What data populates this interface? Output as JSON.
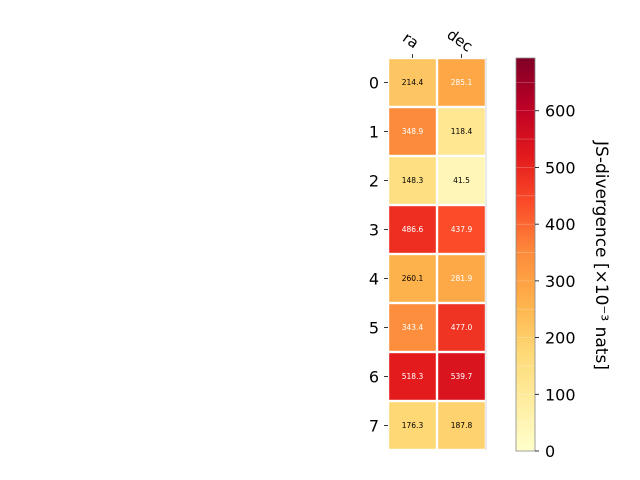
{
  "chart_data": {
    "type": "heatmap",
    "columns": [
      "ra",
      "dec"
    ],
    "rows": [
      "0",
      "1",
      "2",
      "3",
      "4",
      "5",
      "6",
      "7"
    ],
    "values": [
      [
        214.4,
        285.1
      ],
      [
        348.9,
        118.4
      ],
      [
        148.3,
        41.5
      ],
      [
        486.6,
        437.9
      ],
      [
        260.1,
        281.9
      ],
      [
        343.4,
        477.0
      ],
      [
        518.3,
        539.7
      ],
      [
        176.3,
        187.8
      ]
    ],
    "value_labels": [
      [
        "214.4",
        "285.1"
      ],
      [
        "348.9",
        "118.4"
      ],
      [
        "148.3",
        "41.5"
      ],
      [
        "486.6",
        "437.9"
      ],
      [
        "260.1",
        "281.9"
      ],
      [
        "343.4",
        "477.0"
      ],
      [
        "518.3",
        "539.7"
      ],
      [
        "176.3",
        "187.8"
      ]
    ],
    "colorbar": {
      "label": "JS-divergence [×10⁻³ nats]",
      "range": [
        0,
        693
      ],
      "ticks": [
        "0",
        "100",
        "200",
        "300",
        "400",
        "500",
        "600"
      ],
      "colormap": "YlOrRd"
    },
    "colors": {
      "cell_border": "#ffffff",
      "dark_text": "#000000",
      "light_text": "#ffffff"
    }
  }
}
